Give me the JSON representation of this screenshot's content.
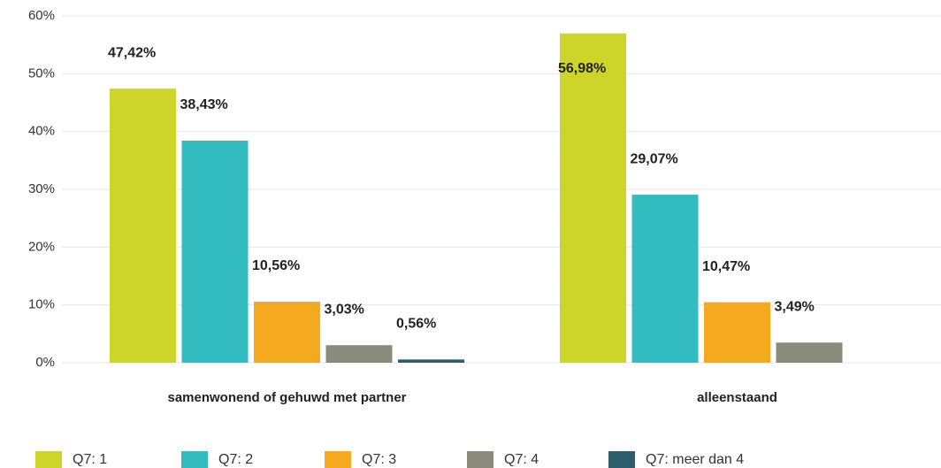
{
  "chart_data": {
    "type": "bar",
    "categories": [
      "samenwonend of gehuwd met partner",
      "alleenstaand"
    ],
    "series": [
      {
        "name": "Q7: 1",
        "color": "#cdd42a",
        "values": [
          47.42,
          56.98
        ],
        "value_labels": [
          "47,42%",
          "56,98%"
        ]
      },
      {
        "name": "Q7: 2",
        "color": "#33bcc0",
        "values": [
          38.43,
          29.07
        ],
        "value_labels": [
          "38,43%",
          "29,07%"
        ]
      },
      {
        "name": "Q7: 3",
        "color": "#f5a91f",
        "values": [
          10.56,
          10.47
        ],
        "value_labels": [
          "10,56%",
          "10,47%"
        ]
      },
      {
        "name": "Q7: 4",
        "color": "#8b8b7b",
        "values": [
          3.03,
          3.49
        ],
        "value_labels": [
          "3,03%",
          "3,49%"
        ]
      },
      {
        "name": "Q7: meer dan 4",
        "color": "#2c5e6d",
        "values": [
          0.56,
          null
        ],
        "value_labels": [
          "0,56%",
          null
        ]
      }
    ],
    "ylim": [
      0,
      60
    ],
    "yticks": [
      {
        "value": 0,
        "label": "0%"
      },
      {
        "value": 10,
        "label": "10%"
      },
      {
        "value": 20,
        "label": "20%"
      },
      {
        "value": 30,
        "label": "30%"
      },
      {
        "value": 40,
        "label": "40%"
      },
      {
        "value": 50,
        "label": "50%"
      },
      {
        "value": 60,
        "label": "60%"
      }
    ],
    "grid": true,
    "legend": "bottom"
  }
}
